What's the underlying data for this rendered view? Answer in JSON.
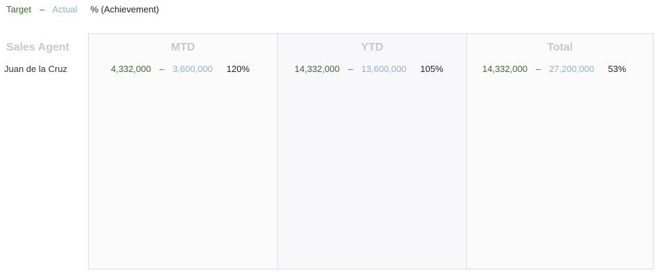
{
  "legend": {
    "target_label": "Target",
    "separator": "–",
    "actual_label": "Actual",
    "achievement_label": "% (Achievement)"
  },
  "table": {
    "agent_header": "Sales Agent",
    "agent_name": "Juan de la Cruz",
    "separator": "–",
    "panels": {
      "mtd": {
        "title": "MTD",
        "target": "4,332,000",
        "actual": "3,600,000",
        "achievement": "120%"
      },
      "ytd": {
        "title": "YTD",
        "target": "14,332,000",
        "actual": "13,600,000",
        "achievement": "105%"
      },
      "total": {
        "title": "Total",
        "target": "14,332,000",
        "actual": "27,200,000",
        "achievement": "53%"
      }
    }
  },
  "colors": {
    "target": "#3d6b2a",
    "actual": "#8ab3d6",
    "header": "#c8c8c8"
  }
}
